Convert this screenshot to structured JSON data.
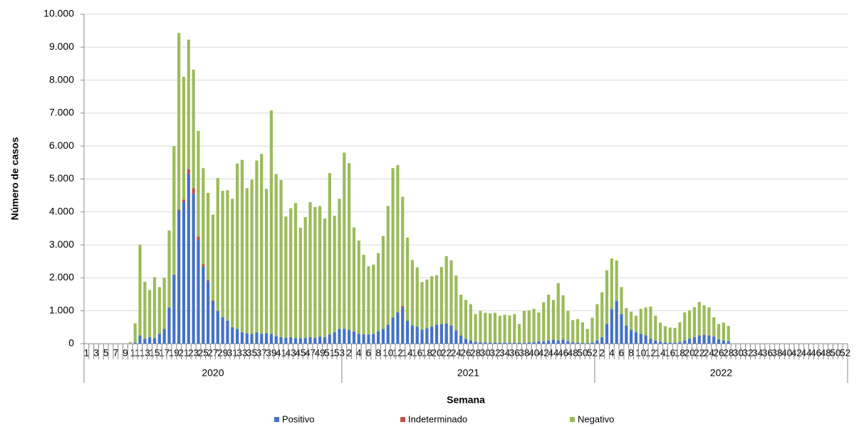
{
  "chart_data": {
    "type": "stacked_bar",
    "y_label": "Número de casos",
    "x_label": "Semana",
    "groups": [
      {
        "label": "2020",
        "categories": [
          "1",
          null,
          "3",
          null,
          "5",
          null,
          "7",
          null,
          "9",
          null,
          "11",
          null,
          "13",
          null,
          "15",
          null,
          "17",
          null,
          "19",
          null,
          "21",
          null,
          "23",
          null,
          "25",
          null,
          "27",
          null,
          "29",
          null,
          "31",
          null,
          "33",
          null,
          "35",
          null,
          "37",
          null,
          "39",
          null,
          "41",
          null,
          "43",
          null,
          "45",
          null,
          "47",
          null,
          "49",
          null,
          "51",
          null,
          "53"
        ]
      },
      {
        "label": "2021",
        "categories": [
          null,
          "2",
          null,
          "4",
          null,
          "6",
          null,
          "8",
          null,
          "10",
          null,
          "12",
          null,
          "14",
          null,
          "16",
          null,
          "18",
          null,
          "20",
          null,
          "22",
          null,
          "24",
          null,
          "26",
          null,
          "28",
          null,
          "30",
          null,
          "32",
          null,
          "34",
          null,
          "36",
          null,
          "38",
          null,
          "40",
          null,
          "42",
          null,
          "44",
          null,
          "46",
          null,
          "48",
          null,
          "50",
          null,
          "52"
        ]
      },
      {
        "label": "2022",
        "categories": [
          null,
          "2",
          null,
          "4",
          null,
          "6",
          null,
          "8",
          null,
          "10",
          null,
          "12",
          null,
          "14",
          null,
          "16",
          null,
          "18",
          null,
          "20",
          null,
          "22",
          null,
          "24",
          null,
          "26",
          null,
          "28",
          null,
          "30",
          null,
          "32",
          null,
          "34",
          null,
          "36",
          null,
          "38",
          null,
          "40",
          null,
          "42",
          null,
          "44",
          null,
          "46",
          null,
          "48",
          null,
          "50",
          null,
          "52"
        ]
      }
    ],
    "series": [
      {
        "name": "Positivo",
        "color": "#4472c4",
        "values": [
          0,
          0,
          0,
          0,
          0,
          0,
          0,
          0,
          0,
          0,
          30,
          250,
          150,
          200,
          170,
          300,
          450,
          1100,
          2100,
          4050,
          4300,
          5150,
          4550,
          3150,
          2350,
          1900,
          1300,
          1000,
          800,
          700,
          500,
          450,
          350,
          320,
          300,
          350,
          300,
          320,
          300,
          230,
          200,
          180,
          200,
          170,
          170,
          180,
          200,
          180,
          220,
          200,
          280,
          350,
          450,
          450,
          420,
          370,
          300,
          280,
          280,
          300,
          380,
          450,
          580,
          800,
          950,
          1100,
          700,
          550,
          520,
          430,
          470,
          520,
          580,
          600,
          620,
          550,
          400,
          250,
          150,
          100,
          60,
          50,
          40,
          30,
          30,
          30,
          30,
          30,
          30,
          30,
          20,
          40,
          50,
          80,
          70,
          100,
          120,
          100,
          130,
          80,
          40,
          30,
          20,
          20,
          40,
          100,
          200,
          600,
          1050,
          1300,
          900,
          550,
          420,
          350,
          300,
          250,
          150,
          100,
          60,
          40,
          30,
          30,
          50,
          100,
          150,
          200,
          250,
          270,
          250,
          220,
          130,
          100,
          80,
          0,
          0,
          0,
          0,
          0,
          0,
          0,
          0,
          0,
          0,
          0,
          0,
          0,
          0,
          0,
          0,
          0,
          0,
          0,
          0,
          0,
          0,
          0,
          0
        ]
      },
      {
        "name": "Indeterminado",
        "color": "#c0504d",
        "values": [
          0,
          0,
          0,
          0,
          0,
          0,
          0,
          0,
          0,
          0,
          0,
          0,
          0,
          0,
          0,
          0,
          0,
          0,
          0,
          20,
          80,
          150,
          170,
          100,
          60,
          30,
          20,
          0,
          0,
          0,
          0,
          0,
          0,
          0,
          0,
          0,
          0,
          0,
          0,
          0,
          0,
          0,
          0,
          0,
          0,
          0,
          0,
          0,
          0,
          0,
          0,
          0,
          0,
          0,
          0,
          0,
          0,
          0,
          0,
          0,
          0,
          0,
          0,
          0,
          0,
          50,
          0,
          0,
          0,
          0,
          0,
          0,
          0,
          0,
          0,
          0,
          0,
          0,
          0,
          0,
          0,
          0,
          0,
          0,
          0,
          0,
          0,
          0,
          0,
          0,
          0,
          0,
          0,
          0,
          0,
          0,
          0,
          0,
          0,
          0,
          0,
          0,
          0,
          0,
          0,
          0,
          0,
          0,
          0,
          0,
          0,
          0,
          0,
          0,
          0,
          0,
          0,
          0,
          0,
          0,
          0,
          0,
          0,
          0,
          0,
          0,
          0,
          0,
          0,
          0,
          0,
          0,
          0,
          0,
          0,
          0,
          0,
          0,
          0,
          0,
          0,
          0,
          0,
          0,
          0,
          0,
          0,
          0,
          0,
          0,
          0,
          0,
          0,
          0,
          0,
          0,
          0
        ]
      },
      {
        "name": "Negativo",
        "color": "#9bbb59",
        "values": [
          0,
          0,
          0,
          0,
          0,
          0,
          0,
          0,
          0,
          50,
          590,
          2750,
          1730,
          1430,
          1850,
          1420,
          1550,
          2340,
          3900,
          5360,
          3720,
          3930,
          3600,
          3210,
          2920,
          2650,
          2600,
          4030,
          3840,
          3960,
          3900,
          5020,
          5230,
          4400,
          4680,
          5210,
          5460,
          4380,
          6780,
          4920,
          4770,
          3680,
          3910,
          4100,
          3350,
          3660,
          4100,
          3970,
          3960,
          3600,
          4900,
          3530,
          3950,
          5350,
          5060,
          3160,
          2830,
          2420,
          2070,
          2100,
          2370,
          2820,
          3600,
          4530,
          4470,
          3310,
          2520,
          1990,
          1800,
          1440,
          1480,
          1530,
          1500,
          1730,
          2040,
          1980,
          1670,
          1240,
          1180,
          1100,
          840,
          950,
          900,
          890,
          910,
          820,
          850,
          830,
          870,
          570,
          980,
          970,
          1010,
          870,
          1190,
          1390,
          1210,
          1740,
          1340,
          920,
          680,
          720,
          630,
          430,
          750,
          1100,
          1360,
          1630,
          1540,
          1230,
          820,
          530,
          550,
          500,
          760,
          850,
          980,
          750,
          580,
          490,
          460,
          450,
          600,
          850,
          860,
          910,
          1020,
          900,
          850,
          580,
          470,
          540,
          460,
          0,
          0,
          0,
          0,
          0,
          0,
          0,
          0,
          0,
          0,
          0,
          0,
          0,
          0,
          0,
          0,
          0,
          0,
          0,
          0,
          0,
          0,
          0,
          0
        ]
      }
    ],
    "ylim": [
      0,
      10000
    ],
    "yticks": [
      0,
      {
        "value": 1000,
        "label": "1.000"
      },
      {
        "value": 2000,
        "label": "2.000"
      },
      {
        "value": 3000,
        "label": "3.000"
      },
      {
        "value": 4000,
        "label": "4.000"
      },
      {
        "value": 5000,
        "label": "5.000"
      },
      {
        "value": 6000,
        "label": "6.000"
      },
      {
        "value": 7000,
        "label": "7.000"
      },
      {
        "value": 8000,
        "label": "8.000"
      },
      {
        "value": 9000,
        "label": "9.000"
      },
      {
        "value": 10000,
        "label": "10.000"
      }
    ],
    "grid": true
  }
}
